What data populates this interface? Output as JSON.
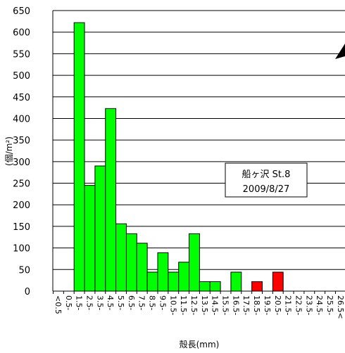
{
  "chart_data": {
    "type": "bar",
    "title": "",
    "xlabel": "殻長(mm)",
    "ylabel": "(個/m²)",
    "ylim": [
      0,
      650
    ],
    "yticks": [
      0,
      50,
      100,
      150,
      200,
      250,
      300,
      350,
      400,
      450,
      500,
      550,
      600,
      650
    ],
    "grid": true,
    "categories": [
      "<0.5",
      "0.5-",
      "1.5-",
      "2.5-",
      "3.5-",
      "4.5-",
      "5.5-",
      "6.5-",
      "7.5-",
      "8.5-",
      "9.5-",
      "10.5-",
      "11.5-",
      "12.5-",
      "13.5-",
      "14.5-",
      "15.5-",
      "16.5-",
      "17.5-",
      "18.5-",
      "19.5-",
      "20.5-",
      "21.5-",
      "22.5-",
      "23.5-",
      "24.5-",
      "25.5-",
      "26.5<"
    ],
    "values": [
      0,
      0,
      622,
      245,
      290,
      423,
      156,
      133,
      111,
      44,
      89,
      44,
      67,
      133,
      22,
      22,
      0,
      44,
      0,
      22,
      0,
      44,
      0,
      0,
      0,
      0,
      0,
      0
    ],
    "bar_colors": [
      "#00ff00",
      "#00ff00",
      "#00ff00",
      "#00ff00",
      "#00ff00",
      "#00ff00",
      "#00ff00",
      "#00ff00",
      "#00ff00",
      "#00ff00",
      "#00ff00",
      "#00ff00",
      "#00ff00",
      "#00ff00",
      "#00ff00",
      "#00ff00",
      "#00ff00",
      "#00ff00",
      "#00ff00",
      "#ff0000",
      "#ff0000",
      "#ff0000",
      "#ff0000",
      "#ff0000",
      "#ff0000",
      "#ff0000",
      "#ff0000",
      "#ff0000"
    ],
    "annotation": {
      "line1": "船ヶ沢 St.8",
      "line2": "2009/8/27"
    }
  }
}
